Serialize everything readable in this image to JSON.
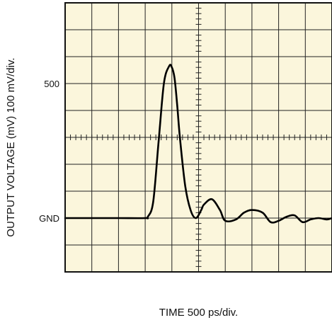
{
  "chart_data": {
    "type": "line",
    "ylabel": "OUTPUT VOLTAGE (mV) 100 mV/div.",
    "xlabel": "TIME 500 ps/div.",
    "y_tick_labels": [
      {
        "label": "500",
        "value": 500
      },
      {
        "label": "GND",
        "value": 0
      }
    ],
    "xlim": [
      0,
      5000
    ],
    "ylim": [
      -200,
      800
    ],
    "x_unit": "ps",
    "y_unit": "mV",
    "grid": true,
    "grid_divisions": {
      "x": 10,
      "y": 10
    },
    "background_color": "#fbf6dc",
    "grid_color": "#222222",
    "trace_color": "#000000",
    "series": [
      {
        "x": [
          0,
          500,
          1000,
          1500,
          1550,
          1650,
          1750,
          1850,
          1950,
          2000,
          2050,
          2100,
          2150,
          2250,
          2350,
          2450,
          2550,
          2600,
          2750,
          2900,
          3000,
          3200,
          3350,
          3500,
          3700,
          3850,
          4000,
          4150,
          4300,
          4450,
          4600,
          4750,
          4900,
          5000
        ],
        "y": [
          0,
          0,
          0,
          0,
          5,
          60,
          280,
          500,
          565,
          560,
          520,
          420,
          300,
          120,
          30,
          0,
          30,
          50,
          70,
          30,
          -10,
          -5,
          20,
          30,
          20,
          -15,
          -10,
          5,
          10,
          -15,
          -5,
          0,
          -5,
          0
        ]
      }
    ]
  }
}
